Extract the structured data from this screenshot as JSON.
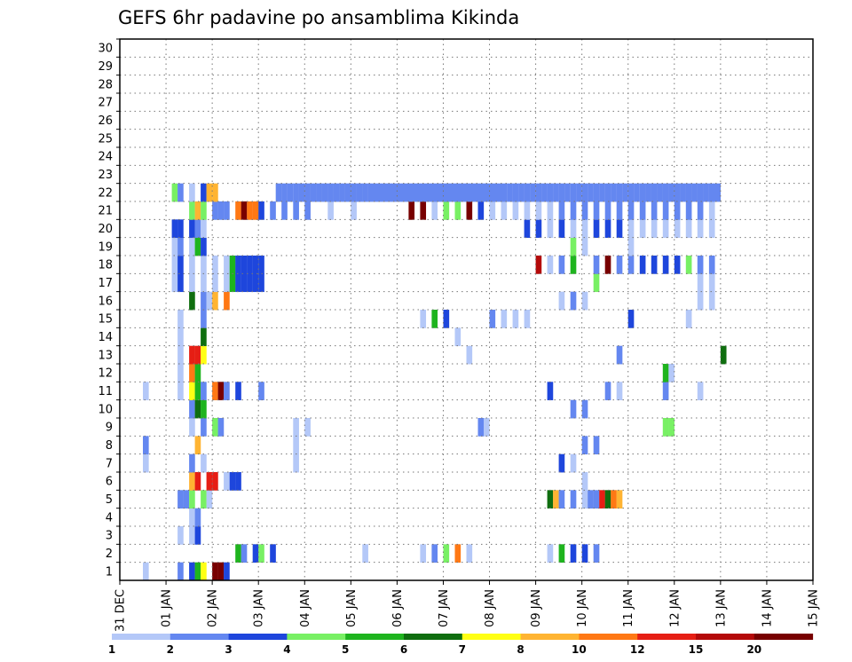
{
  "chart_data": {
    "type": "heatmap",
    "title": "GEFS 6hr padavine po ansamblima Kikinda",
    "xlabel": "",
    "ylabel": "",
    "x_ticks": [
      "31 DEC",
      "01 JAN",
      "02 JAN",
      "03 JAN",
      "04 JAN",
      "05 JAN",
      "06 JAN",
      "07 JAN",
      "08 JAN",
      "09 JAN",
      "10 JAN",
      "11 JAN",
      "12 JAN",
      "13 JAN",
      "14 JAN",
      "15 JAN"
    ],
    "y_ticks": [
      "1",
      "2",
      "3",
      "4",
      "5",
      "6",
      "7",
      "8",
      "9",
      "10",
      "11",
      "12",
      "13",
      "14",
      "15",
      "16",
      "17",
      "18",
      "19",
      "20",
      "21",
      "22",
      "23",
      "24",
      "25",
      "26",
      "27",
      "28",
      "29",
      "30"
    ],
    "xlim": [
      0,
      60
    ],
    "ylim": [
      0,
      30
    ],
    "grid": true,
    "legend": {
      "position": "bottom",
      "labels": [
        "1",
        "2",
        "3",
        "4",
        "5",
        "6",
        "7",
        "8",
        "10",
        "12",
        "15",
        "20"
      ],
      "colors": [
        "#b4c8f8",
        "#6487f0",
        "#1e46dc",
        "#78f064",
        "#1eb41e",
        "#0f6e0f",
        "#ffff14",
        "#ffb432",
        "#ff7814",
        "#e61e14",
        "#b40a0a",
        "#780000"
      ]
    },
    "cells": [
      [
        2,
        0,
        1
      ],
      [
        5,
        0,
        2
      ],
      [
        6,
        0,
        3
      ],
      [
        6.5,
        0,
        5
      ],
      [
        7,
        0,
        7
      ],
      [
        8,
        0,
        12
      ],
      [
        8.5,
        0,
        13
      ],
      [
        9,
        0,
        3
      ],
      [
        10,
        1,
        5
      ],
      [
        10.5,
        1,
        2
      ],
      [
        11.5,
        1,
        3
      ],
      [
        12,
        1,
        4
      ],
      [
        13,
        1,
        3
      ],
      [
        21,
        1,
        1
      ],
      [
        26,
        1,
        1
      ],
      [
        27,
        1,
        2
      ],
      [
        28,
        1,
        4
      ],
      [
        29,
        1,
        9
      ],
      [
        30,
        1,
        1
      ],
      [
        37,
        1,
        1
      ],
      [
        38,
        1,
        5
      ],
      [
        39,
        1,
        3
      ],
      [
        40,
        1,
        3
      ],
      [
        41,
        1,
        2
      ],
      [
        5,
        2,
        1
      ],
      [
        6,
        2,
        1
      ],
      [
        6.5,
        2,
        3
      ],
      [
        6,
        3,
        1
      ],
      [
        6.5,
        3,
        2
      ],
      [
        5,
        4,
        2
      ],
      [
        5.5,
        4,
        2
      ],
      [
        6,
        4,
        4
      ],
      [
        7,
        4,
        4
      ],
      [
        7.5,
        4,
        1
      ],
      [
        37,
        4,
        6
      ],
      [
        37.5,
        4,
        8
      ],
      [
        38,
        4,
        2
      ],
      [
        39,
        4,
        2
      ],
      [
        40,
        4,
        1
      ],
      [
        40.5,
        4,
        2
      ],
      [
        41,
        4,
        2
      ],
      [
        41.5,
        4,
        10
      ],
      [
        42,
        4,
        6
      ],
      [
        42.5,
        4,
        9
      ],
      [
        43,
        4,
        8
      ],
      [
        6,
        5,
        8
      ],
      [
        6.5,
        5,
        10
      ],
      [
        7.5,
        5,
        10
      ],
      [
        8,
        5,
        10
      ],
      [
        9,
        5,
        1
      ],
      [
        9.5,
        5,
        3
      ],
      [
        10,
        5,
        3
      ],
      [
        40,
        5,
        1
      ],
      [
        2,
        6,
        1
      ],
      [
        6,
        6,
        2
      ],
      [
        7,
        6,
        1
      ],
      [
        15,
        6,
        1
      ],
      [
        38,
        6,
        3
      ],
      [
        39,
        6,
        1
      ],
      [
        2,
        7,
        2
      ],
      [
        6.5,
        7,
        8
      ],
      [
        15,
        7,
        1
      ],
      [
        40,
        7,
        2
      ],
      [
        41,
        7,
        2
      ],
      [
        6,
        8,
        1
      ],
      [
        7,
        8,
        2
      ],
      [
        8,
        8,
        4
      ],
      [
        8.5,
        8,
        2
      ],
      [
        15,
        8,
        1
      ],
      [
        16,
        8,
        1
      ],
      [
        31,
        8,
        2
      ],
      [
        31.5,
        8,
        1
      ],
      [
        47,
        8,
        4
      ],
      [
        47.5,
        8,
        4
      ],
      [
        6,
        9,
        2
      ],
      [
        6.5,
        9,
        6
      ],
      [
        7,
        9,
        5
      ],
      [
        39,
        9,
        2
      ],
      [
        40,
        9,
        2
      ],
      [
        2,
        10,
        1
      ],
      [
        5,
        10,
        1
      ],
      [
        6,
        10,
        7
      ],
      [
        6.5,
        10,
        5
      ],
      [
        7,
        10,
        2
      ],
      [
        8,
        10,
        9
      ],
      [
        8.5,
        10,
        12
      ],
      [
        9,
        10,
        2
      ],
      [
        10,
        10,
        3
      ],
      [
        12,
        10,
        2
      ],
      [
        37,
        10,
        3
      ],
      [
        42,
        10,
        2
      ],
      [
        43,
        10,
        1
      ],
      [
        47,
        10,
        2
      ],
      [
        50,
        10,
        1
      ],
      [
        5,
        11,
        1
      ],
      [
        6,
        11,
        9
      ],
      [
        6.5,
        11,
        5
      ],
      [
        47,
        11,
        5
      ],
      [
        47.5,
        11,
        1
      ],
      [
        5,
        12,
        1
      ],
      [
        6,
        12,
        10
      ],
      [
        6.5,
        12,
        10
      ],
      [
        7,
        12,
        7
      ],
      [
        30,
        12,
        1
      ],
      [
        43,
        12,
        2
      ],
      [
        52,
        12,
        6
      ],
      [
        5,
        13,
        1
      ],
      [
        7,
        13,
        6
      ],
      [
        29,
        13,
        1
      ],
      [
        5,
        14,
        1
      ],
      [
        7,
        14,
        2
      ],
      [
        26,
        14,
        1
      ],
      [
        27,
        14,
        5
      ],
      [
        28,
        14,
        3
      ],
      [
        32,
        14,
        2
      ],
      [
        33,
        14,
        1
      ],
      [
        34,
        14,
        1
      ],
      [
        35,
        14,
        1
      ],
      [
        44,
        14,
        3
      ],
      [
        49,
        14,
        1
      ],
      [
        6,
        15,
        6
      ],
      [
        7,
        15,
        2
      ],
      [
        7.5,
        15,
        1
      ],
      [
        8,
        15,
        8
      ],
      [
        9,
        15,
        9
      ],
      [
        38,
        15,
        1
      ],
      [
        39,
        15,
        2
      ],
      [
        40,
        15,
        1
      ],
      [
        50,
        15,
        1
      ],
      [
        51,
        15,
        1
      ],
      [
        4.5,
        16,
        1
      ],
      [
        5,
        16,
        3
      ],
      [
        6,
        16,
        1
      ],
      [
        7,
        16,
        1
      ],
      [
        8,
        16,
        1
      ],
      [
        9,
        16,
        1
      ],
      [
        9.5,
        16,
        5
      ],
      [
        10,
        16,
        3
      ],
      [
        10.5,
        16,
        3
      ],
      [
        11,
        16,
        3
      ],
      [
        11.5,
        16,
        3
      ],
      [
        12,
        16,
        3
      ],
      [
        41,
        16,
        4
      ],
      [
        50,
        16,
        1
      ],
      [
        51,
        16,
        1
      ],
      [
        4.5,
        17,
        1
      ],
      [
        5,
        17,
        3
      ],
      [
        6,
        17,
        1
      ],
      [
        7,
        17,
        1
      ],
      [
        8,
        17,
        1
      ],
      [
        9,
        17,
        1
      ],
      [
        9.5,
        17,
        5
      ],
      [
        10,
        17,
        3
      ],
      [
        10.5,
        17,
        3
      ],
      [
        11,
        17,
        3
      ],
      [
        11.5,
        17,
        3
      ],
      [
        12,
        17,
        3
      ],
      [
        36,
        17,
        11
      ],
      [
        37,
        17,
        1
      ],
      [
        38,
        17,
        2
      ],
      [
        39,
        17,
        5
      ],
      [
        41,
        17,
        2
      ],
      [
        42,
        17,
        12
      ],
      [
        43,
        17,
        2
      ],
      [
        44,
        17,
        2
      ],
      [
        45,
        17,
        3
      ],
      [
        46,
        17,
        3
      ],
      [
        47,
        17,
        3
      ],
      [
        48,
        17,
        3
      ],
      [
        49,
        17,
        4
      ],
      [
        50,
        17,
        2
      ],
      [
        51,
        17,
        2
      ],
      [
        4.5,
        18,
        1
      ],
      [
        5,
        18,
        2
      ],
      [
        6,
        18,
        1
      ],
      [
        6.5,
        18,
        5
      ],
      [
        7,
        18,
        3
      ],
      [
        39,
        18,
        4
      ],
      [
        40,
        18,
        1
      ],
      [
        44,
        18,
        1
      ],
      [
        4.5,
        19,
        3
      ],
      [
        5,
        19,
        3
      ],
      [
        6,
        19,
        3
      ],
      [
        6.5,
        19,
        2
      ],
      [
        7,
        19,
        1
      ],
      [
        35,
        19,
        3
      ],
      [
        36,
        19,
        3
      ],
      [
        37,
        19,
        1
      ],
      [
        38,
        19,
        3
      ],
      [
        39,
        19,
        1
      ],
      [
        40,
        19,
        1
      ],
      [
        41,
        19,
        3
      ],
      [
        42,
        19,
        3
      ],
      [
        43,
        19,
        3
      ],
      [
        44,
        19,
        1
      ],
      [
        45,
        19,
        1
      ],
      [
        46,
        19,
        1
      ],
      [
        47,
        19,
        1
      ],
      [
        48,
        19,
        1
      ],
      [
        49,
        19,
        1
      ],
      [
        50,
        19,
        1
      ],
      [
        51,
        19,
        1
      ],
      [
        6,
        20,
        4
      ],
      [
        6.5,
        20,
        8
      ],
      [
        7,
        20,
        4
      ],
      [
        8,
        20,
        2
      ],
      [
        8.5,
        20,
        2
      ],
      [
        9,
        20,
        2
      ],
      [
        10,
        20,
        9
      ],
      [
        10.5,
        20,
        12
      ],
      [
        11,
        20,
        9
      ],
      [
        11.5,
        20,
        9
      ],
      [
        12,
        20,
        3
      ],
      [
        13,
        20,
        2
      ],
      [
        14,
        20,
        2
      ],
      [
        15,
        20,
        2
      ],
      [
        16,
        20,
        2
      ],
      [
        18,
        20,
        1
      ],
      [
        20,
        20,
        1
      ],
      [
        25,
        20,
        12
      ],
      [
        26,
        20,
        12
      ],
      [
        27,
        20,
        1
      ],
      [
        28,
        20,
        4
      ],
      [
        29,
        20,
        4
      ],
      [
        30,
        20,
        12
      ],
      [
        31,
        20,
        3
      ],
      [
        32,
        20,
        1
      ],
      [
        33,
        20,
        1
      ],
      [
        34,
        20,
        1
      ],
      [
        35,
        20,
        1
      ],
      [
        36,
        20,
        1
      ],
      [
        37,
        20,
        1
      ],
      [
        38,
        20,
        2
      ],
      [
        39,
        20,
        2
      ],
      [
        40,
        20,
        2
      ],
      [
        41,
        20,
        2
      ],
      [
        42,
        20,
        2
      ],
      [
        43,
        20,
        2
      ],
      [
        44,
        20,
        2
      ],
      [
        45,
        20,
        2
      ],
      [
        46,
        20,
        2
      ],
      [
        47,
        20,
        2
      ],
      [
        48,
        20,
        2
      ],
      [
        49,
        20,
        2
      ],
      [
        50,
        20,
        2
      ],
      [
        51,
        20,
        1
      ],
      [
        4.5,
        21,
        4
      ],
      [
        5,
        21,
        2
      ],
      [
        6,
        21,
        1
      ],
      [
        7,
        21,
        3
      ],
      [
        7.5,
        21,
        8
      ],
      [
        8,
        21,
        8
      ],
      [
        13.5,
        21,
        2
      ],
      [
        14,
        21,
        2
      ],
      [
        14.5,
        21,
        2
      ],
      [
        15,
        21,
        2
      ],
      [
        15.5,
        21,
        2
      ],
      [
        16,
        21,
        2
      ],
      [
        16.5,
        21,
        2
      ],
      [
        17,
        21,
        2
      ],
      [
        17.5,
        21,
        2
      ],
      [
        18,
        21,
        2
      ],
      [
        18.5,
        21,
        2
      ],
      [
        19,
        21,
        2
      ],
      [
        19.5,
        21,
        2
      ],
      [
        20,
        21,
        2
      ],
      [
        20.5,
        21,
        2
      ],
      [
        21,
        21,
        2
      ],
      [
        21.5,
        21,
        2
      ],
      [
        22,
        21,
        2
      ],
      [
        22.5,
        21,
        2
      ],
      [
        23,
        21,
        2
      ],
      [
        23.5,
        21,
        2
      ],
      [
        24,
        21,
        2
      ],
      [
        24.5,
        21,
        2
      ],
      [
        25,
        21,
        2
      ],
      [
        25.5,
        21,
        2
      ],
      [
        26,
        21,
        2
      ],
      [
        26.5,
        21,
        2
      ],
      [
        27,
        21,
        2
      ],
      [
        27.5,
        21,
        2
      ],
      [
        28,
        21,
        2
      ],
      [
        28.5,
        21,
        2
      ],
      [
        29,
        21,
        2
      ],
      [
        29.5,
        21,
        2
      ],
      [
        30,
        21,
        2
      ],
      [
        30.5,
        21,
        2
      ],
      [
        31,
        21,
        2
      ],
      [
        31.5,
        21,
        2
      ],
      [
        32,
        21,
        2
      ],
      [
        32.5,
        21,
        2
      ],
      [
        33,
        21,
        2
      ],
      [
        33.5,
        21,
        2
      ],
      [
        34,
        21,
        2
      ],
      [
        34.5,
        21,
        2
      ],
      [
        35,
        21,
        2
      ],
      [
        35.5,
        21,
        2
      ],
      [
        36,
        21,
        2
      ],
      [
        36.5,
        21,
        2
      ],
      [
        37,
        21,
        2
      ],
      [
        37.5,
        21,
        2
      ],
      [
        38,
        21,
        2
      ],
      [
        38.5,
        21,
        2
      ],
      [
        39,
        21,
        2
      ],
      [
        39.5,
        21,
        2
      ],
      [
        40,
        21,
        2
      ],
      [
        40.5,
        21,
        2
      ],
      [
        41,
        21,
        2
      ],
      [
        41.5,
        21,
        2
      ],
      [
        42,
        21,
        2
      ],
      [
        42.5,
        21,
        2
      ],
      [
        43,
        21,
        2
      ],
      [
        43.5,
        21,
        2
      ],
      [
        44,
        21,
        2
      ],
      [
        44.5,
        21,
        2
      ],
      [
        45,
        21,
        2
      ],
      [
        45.5,
        21,
        2
      ],
      [
        46,
        21,
        2
      ],
      [
        46.5,
        21,
        2
      ],
      [
        47,
        21,
        2
      ],
      [
        47.5,
        21,
        2
      ],
      [
        48,
        21,
        2
      ],
      [
        48.5,
        21,
        2
      ],
      [
        49,
        21,
        2
      ],
      [
        49.5,
        21,
        2
      ],
      [
        50,
        21,
        2
      ],
      [
        50.5,
        21,
        2
      ],
      [
        51,
        21,
        2
      ],
      [
        51.5,
        21,
        2
      ]
    ]
  }
}
